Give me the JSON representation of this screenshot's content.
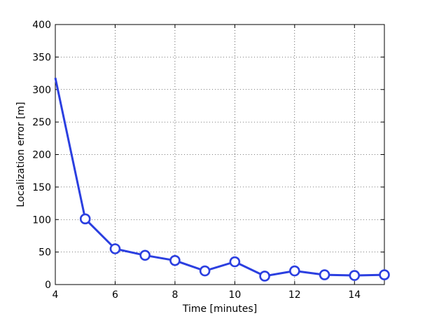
{
  "chart_data": {
    "type": "line",
    "title": "",
    "xlabel": "Time [minutes]",
    "ylabel": "Localization error [m]",
    "xlim": [
      4,
      15
    ],
    "ylim": [
      0,
      400
    ],
    "xticks": [
      4,
      6,
      8,
      10,
      12,
      14
    ],
    "yticks": [
      0,
      50,
      100,
      150,
      200,
      250,
      300,
      350,
      400
    ],
    "grid": true,
    "series": [
      {
        "color": "#2b3fe0",
        "points": [
          {
            "x": 4,
            "y": 318,
            "marker": false
          },
          {
            "x": 5,
            "y": 101,
            "marker": true
          },
          {
            "x": 6,
            "y": 55,
            "marker": true
          },
          {
            "x": 7,
            "y": 45,
            "marker": true
          },
          {
            "x": 8,
            "y": 37,
            "marker": true
          },
          {
            "x": 9,
            "y": 21,
            "marker": true
          },
          {
            "x": 10,
            "y": 35,
            "marker": true
          },
          {
            "x": 11,
            "y": 13,
            "marker": true
          },
          {
            "x": 12,
            "y": 21,
            "marker": true
          },
          {
            "x": 13,
            "y": 15,
            "marker": true
          },
          {
            "x": 14,
            "y": 14,
            "marker": true
          },
          {
            "x": 15,
            "y": 15,
            "marker": true
          }
        ]
      }
    ]
  }
}
